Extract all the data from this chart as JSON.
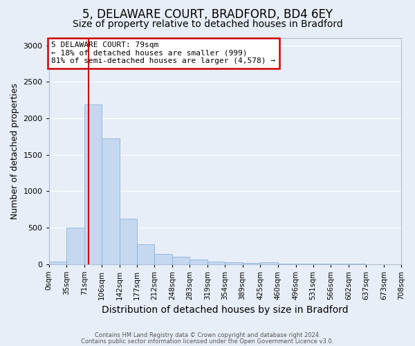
{
  "title1": "5, DELAWARE COURT, BRADFORD, BD4 6EY",
  "title2": "Size of property relative to detached houses in Bradford",
  "xlabel": "Distribution of detached houses by size in Bradford",
  "ylabel": "Number of detached properties",
  "footnote1": "Contains HM Land Registry data © Crown copyright and database right 2024.",
  "footnote2": "Contains public sector information licensed under the Open Government Licence v3.0.",
  "bin_labels": [
    "0sqm",
    "35sqm",
    "71sqm",
    "106sqm",
    "142sqm",
    "177sqm",
    "212sqm",
    "248sqm",
    "283sqm",
    "319sqm",
    "354sqm",
    "389sqm",
    "425sqm",
    "460sqm",
    "496sqm",
    "531sqm",
    "566sqm",
    "602sqm",
    "637sqm",
    "673sqm",
    "708sqm"
  ],
  "bin_edges": [
    0,
    35,
    71,
    106,
    142,
    177,
    212,
    248,
    283,
    319,
    354,
    389,
    425,
    460,
    496,
    531,
    566,
    602,
    637,
    673,
    708
  ],
  "bar_heights": [
    30,
    500,
    2190,
    1720,
    620,
    270,
    140,
    100,
    65,
    35,
    25,
    15,
    20,
    8,
    3,
    2,
    1,
    1,
    0,
    0
  ],
  "bar_color": "#c5d8f0",
  "bar_edge_color": "#8ab4d8",
  "property_size": 79,
  "red_line_color": "#cc0000",
  "annotation_line1": "5 DELAWARE COURT: 79sqm",
  "annotation_line2": "← 18% of detached houses are smaller (999)",
  "annotation_line3": "81% of semi-detached houses are larger (4,578) →",
  "annotation_box_color": "#cc0000",
  "ylim": [
    0,
    3100
  ],
  "yticks": [
    0,
    500,
    1000,
    1500,
    2000,
    2500,
    3000
  ],
  "background_color": "#e8eef8",
  "plot_background": "#e8eef8",
  "title1_fontsize": 12,
  "title2_fontsize": 10,
  "xlabel_fontsize": 10,
  "ylabel_fontsize": 9,
  "annotation_fontsize": 8,
  "tick_fontsize": 7.5
}
